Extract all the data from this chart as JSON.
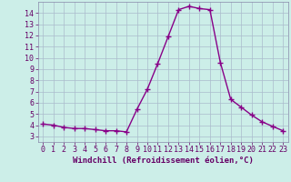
{
  "x": [
    0,
    1,
    2,
    3,
    4,
    5,
    6,
    7,
    8,
    9,
    10,
    11,
    12,
    13,
    14,
    15,
    16,
    17,
    18,
    19,
    20,
    21,
    22,
    23
  ],
  "y": [
    4.1,
    4.0,
    3.8,
    3.7,
    3.7,
    3.6,
    3.5,
    3.5,
    3.4,
    5.4,
    7.2,
    9.5,
    11.9,
    14.3,
    14.6,
    14.4,
    14.3,
    9.6,
    6.3,
    5.6,
    4.9,
    4.3,
    3.9,
    3.5
  ],
  "line_color": "#880088",
  "marker": "+",
  "marker_size": 4.0,
  "bg_color": "#cceee8",
  "grid_color": "#aabbcc",
  "xlabel": "Windchill (Refroidissement éolien,°C)",
  "xlabel_fontsize": 6.5,
  "xlim": [
    -0.5,
    23.5
  ],
  "ylim": [
    2.5,
    15.0
  ],
  "yticks": [
    3,
    4,
    5,
    6,
    7,
    8,
    9,
    10,
    11,
    12,
    13,
    14
  ],
  "xticks": [
    0,
    1,
    2,
    3,
    4,
    5,
    6,
    7,
    8,
    9,
    10,
    11,
    12,
    13,
    14,
    15,
    16,
    17,
    18,
    19,
    20,
    21,
    22,
    23
  ],
  "tick_fontsize": 6.0,
  "axis_color": "#660066",
  "spine_color": "#8888aa",
  "linewidth": 1.0,
  "marker_linewidth": 1.0
}
